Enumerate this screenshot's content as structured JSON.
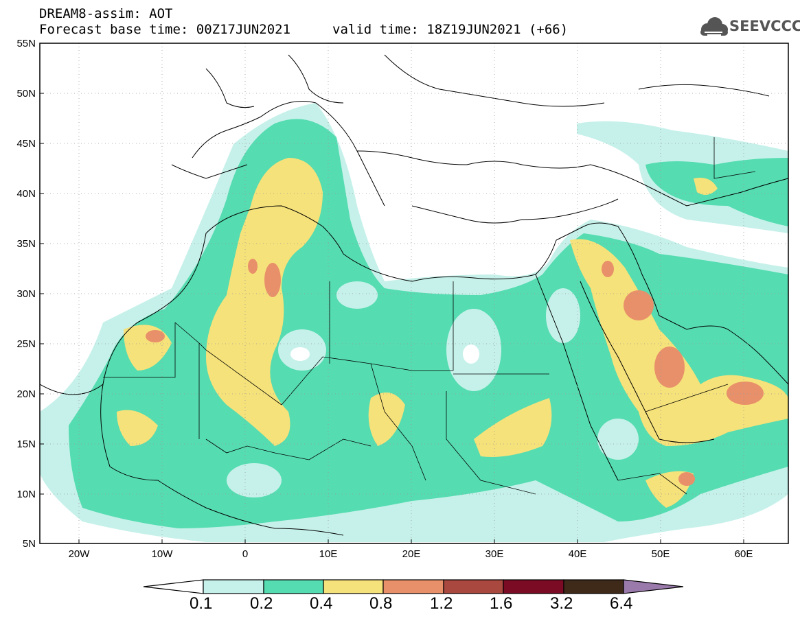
{
  "header": {
    "model_title": "DREAM8-assim: AOT",
    "base_time": "Forecast base time: 00Z17JUN2021",
    "valid_time": "valid time: 18Z19JUN2021 (+66)"
  },
  "logo": {
    "text": "SEEVCCC",
    "icon": "cloud-logo-icon"
  },
  "axes": {
    "lat_labels": [
      "55N",
      "50N",
      "45N",
      "40N",
      "35N",
      "30N",
      "25N",
      "20N",
      "15N",
      "10N",
      "5N"
    ],
    "lon_labels": [
      "20W",
      "10W",
      "0",
      "10E",
      "20E",
      "30E",
      "40E",
      "50E",
      "60E"
    ]
  },
  "colorbar": {
    "labels": [
      "0.1",
      "0.2",
      "0.4",
      "0.8",
      "1.2",
      "1.6",
      "3.2",
      "6.4"
    ],
    "colors": [
      "#c6f1ea",
      "#55dcb0",
      "#f6e27a",
      "#e8906a",
      "#a8483e",
      "#7b0a24",
      "#3f2a1a",
      "#9a7aab"
    ]
  },
  "fill_colors": {
    "c1": "#c6f1ea",
    "c2": "#55dcb0",
    "c3": "#f6e27a",
    "c4": "#e8906a"
  }
}
